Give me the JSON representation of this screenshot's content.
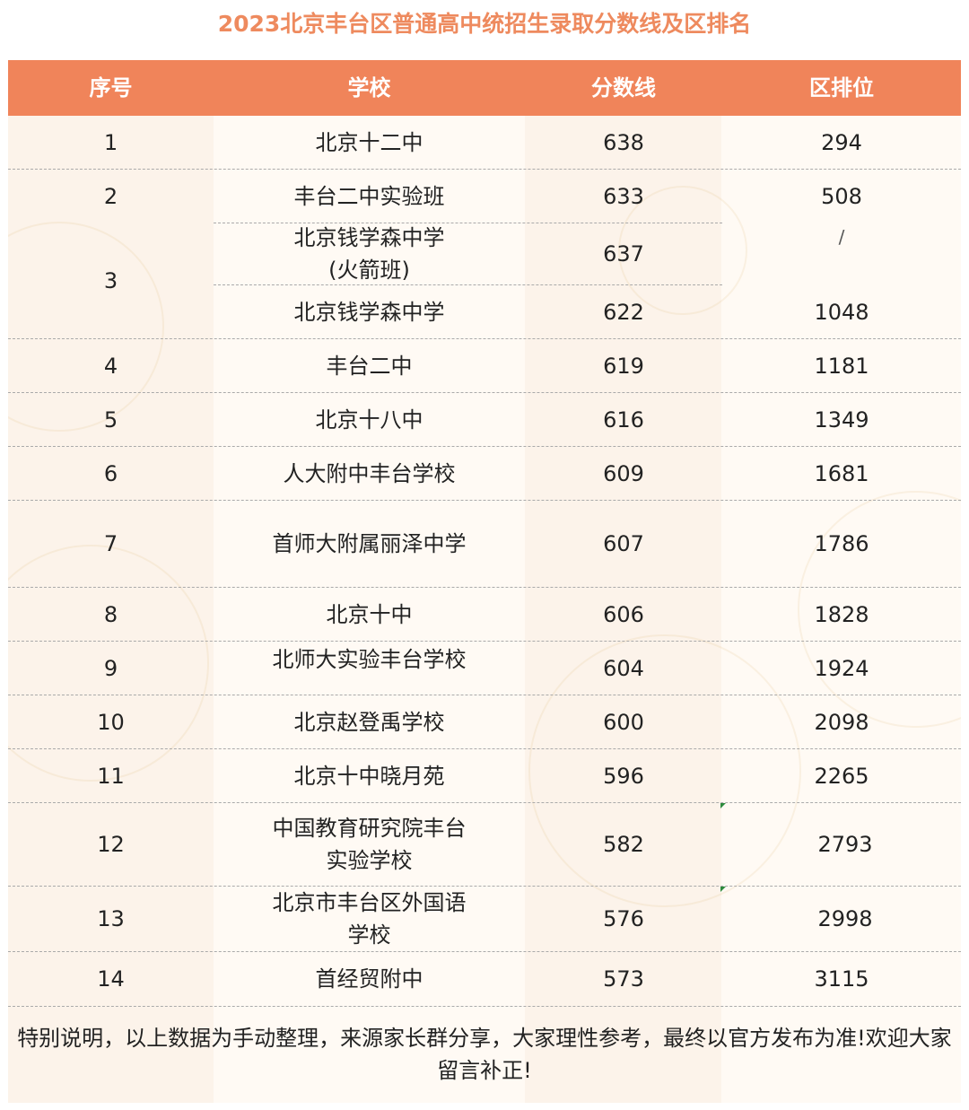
{
  "title": "2023北京丰台区普通高中统招生录取分数线及区排名",
  "colors": {
    "header_bg": "#f0845a",
    "title_text": "#ee8a5e",
    "table_bg": "#fcf3ea"
  },
  "headers": {
    "seq": "序号",
    "school": "学校",
    "score": "分数线",
    "rank": "区排位"
  },
  "rows": [
    {
      "seq": "1",
      "school": "北京十二中",
      "score": "638",
      "rank": "294"
    },
    {
      "seq": "2",
      "school": "丰台二中实验班",
      "score": "633",
      "rank": "508"
    },
    {
      "seq": "3",
      "school": "北京钱学森中学\n(火箭班)",
      "score": "637",
      "rank": "/"
    },
    {
      "seq": "",
      "school": "北京钱学森中学",
      "score": "622",
      "rank": "1048"
    },
    {
      "seq": "4",
      "school": "丰台二中",
      "score": "619",
      "rank": "1181"
    },
    {
      "seq": "5",
      "school": "北京十八中",
      "score": "616",
      "rank": "1349"
    },
    {
      "seq": "6",
      "school": "人大附中丰台学校",
      "score": "609",
      "rank": "1681"
    },
    {
      "seq": "7",
      "school": "首师大附属丽泽中学",
      "score": "607",
      "rank": "1786"
    },
    {
      "seq": "8",
      "school": "北京十中",
      "score": "606",
      "rank": "1828"
    },
    {
      "seq": "9",
      "school": "北师大实验丰台学校",
      "score": "604",
      "rank": "1924"
    },
    {
      "seq": "10",
      "school": "北京赵登禹学校",
      "score": "600",
      "rank": "2098"
    },
    {
      "seq": "11",
      "school": "北京十中晓月苑",
      "score": "596",
      "rank": "2265"
    },
    {
      "seq": "12",
      "school": "中国教育研究院丰台实验学校",
      "score": "582",
      "rank": "2793"
    },
    {
      "seq": "13",
      "school": "北京市丰台区外国语学校",
      "score": "576",
      "rank": "2998"
    },
    {
      "seq": "14",
      "school": "首经贸附中",
      "score": "573",
      "rank": "3115"
    }
  ],
  "note": "特别说明，以上数据为手动整理，来源家长群分享，大家理性参考，最终以官方发布为准!欢迎大家留言补正!"
}
